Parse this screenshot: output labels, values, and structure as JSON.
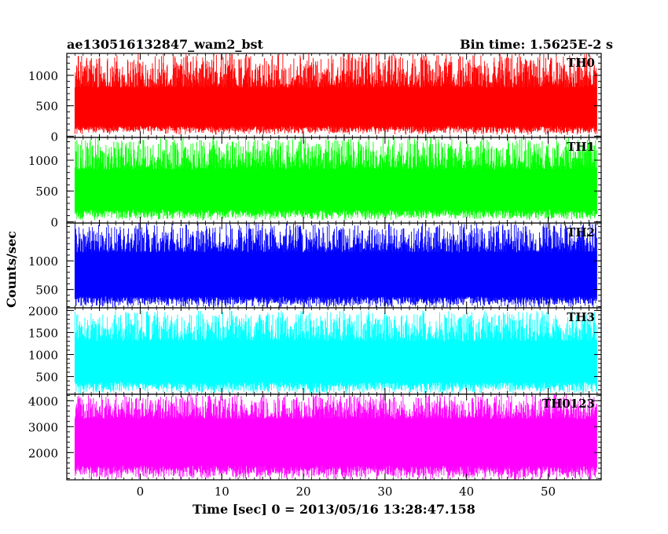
{
  "header": {
    "left_title": "ae130516132847_wam2_bst",
    "right_title": "Bin time: 1.5625E-2 s"
  },
  "chart_data": {
    "type": "line",
    "xlabel": "Time [sec] 0 = 2013/05/16 13:28:47.158",
    "ylabel": "Counts/sec",
    "xlim": [
      -9,
      56.5
    ],
    "x_ticks": [
      0,
      10,
      20,
      30,
      40,
      50
    ],
    "x_tick_labels": [
      "0",
      "10",
      "20",
      "30",
      "40",
      "50"
    ],
    "data_x_range": [
      -8,
      56
    ],
    "bin_time_s": 0.015625,
    "panels": [
      {
        "name": "TH0",
        "color": "#ff0000",
        "ylim": [
          -20,
          1360
        ],
        "y_ticks": [
          0,
          500,
          1000
        ],
        "y_tick_labels": [
          "0",
          "500",
          "1000"
        ],
        "signal": {
          "low_min": 20,
          "low_max": 170,
          "high_min": 800,
          "high_max": 1360
        }
      },
      {
        "name": "TH1",
        "color": "#00ff00",
        "ylim": [
          -20,
          1370
        ],
        "y_ticks": [
          0,
          500,
          1000
        ],
        "y_tick_labels": [
          "0",
          "500",
          "1000"
        ],
        "signal": {
          "low_min": 20,
          "low_max": 200,
          "high_min": 850,
          "high_max": 1370
        }
      },
      {
        "name": "TH2",
        "color": "#0000ff",
        "ylim": [
          180,
          1660
        ],
        "y_ticks": [
          500,
          1000
        ],
        "y_tick_labels": [
          "500",
          "1000"
        ],
        "signal": {
          "low_min": 180,
          "low_max": 380,
          "high_min": 1150,
          "high_max": 1660
        }
      },
      {
        "name": "TH3",
        "color": "#00ffff",
        "ylim": [
          100,
          2060
        ],
        "y_ticks": [
          500,
          1000,
          1500,
          2000
        ],
        "y_tick_labels": [
          "500",
          "1000",
          "1500",
          "2000"
        ],
        "signal": {
          "low_min": 100,
          "low_max": 380,
          "high_min": 1300,
          "high_max": 2000
        }
      },
      {
        "name": "TH0123",
        "color": "#ff00ff",
        "ylim": [
          950,
          4250
        ],
        "y_ticks": [
          2000,
          3000,
          4000
        ],
        "y_tick_labels": [
          "2000",
          "3000",
          "4000"
        ],
        "signal": {
          "low_min": 950,
          "low_max": 1500,
          "high_min": 3300,
          "high_max": 4250
        }
      }
    ]
  }
}
